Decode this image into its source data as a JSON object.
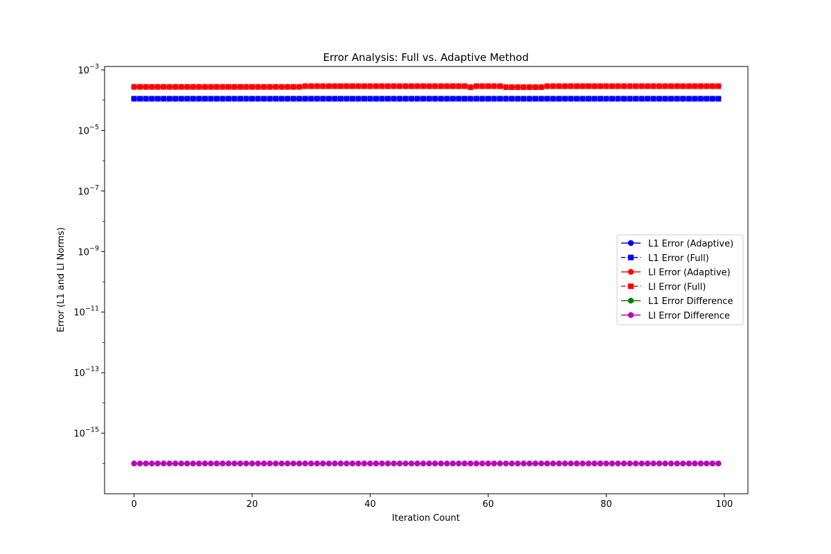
{
  "chart_data": {
    "type": "line",
    "title": "Error Analysis: Full vs. Adaptive Method",
    "xlabel": "Iteration Count",
    "ylabel": "Error (L1 and LI Norms)",
    "xlim": [
      -5,
      104
    ],
    "ylim": [
      1e-17,
      0.0013
    ],
    "yscale": "log",
    "grid": false,
    "legend_position": "center-right",
    "x_ticks": [
      {
        "value": 0,
        "label": "0"
      },
      {
        "value": 20,
        "label": "20"
      },
      {
        "value": 40,
        "label": "40"
      },
      {
        "value": 60,
        "label": "60"
      },
      {
        "value": 80,
        "label": "80"
      },
      {
        "value": 100,
        "label": "100"
      }
    ],
    "y_ticks": [
      {
        "exp": -3,
        "base": "10",
        "power": "−3"
      },
      {
        "exp": -5,
        "base": "10",
        "power": "−5"
      },
      {
        "exp": -7,
        "base": "10",
        "power": "−7"
      },
      {
        "exp": -9,
        "base": "10",
        "power": "−9"
      },
      {
        "exp": -11,
        "base": "10",
        "power": "−11"
      },
      {
        "exp": -13,
        "base": "10",
        "power": "−13"
      },
      {
        "exp": -15,
        "base": "10",
        "power": "−15"
      }
    ],
    "x": {
      "start": 0,
      "end": 99,
      "step": 1
    },
    "series": [
      {
        "name": "L1 Error (Adaptive)",
        "color": "#0000ff",
        "marker": "circle",
        "linestyle": "solid",
        "segments": [
          {
            "from": 0,
            "to": 99,
            "value": 0.000112
          }
        ]
      },
      {
        "name": "L1 Error (Full)",
        "color": "#0000ff",
        "marker": "square",
        "linestyle": "dashed",
        "segments": [
          {
            "from": 0,
            "to": 99,
            "value": 0.000112
          }
        ]
      },
      {
        "name": "LI Error (Adaptive)",
        "color": "#ff0000",
        "marker": "circle",
        "linestyle": "solid",
        "segments": [
          {
            "from": 0,
            "to": 28,
            "value": 0.000275
          },
          {
            "from": 29,
            "to": 56,
            "value": 0.00029
          },
          {
            "from": 57,
            "to": 57,
            "value": 0.00027
          },
          {
            "from": 58,
            "to": 62,
            "value": 0.00029
          },
          {
            "from": 63,
            "to": 69,
            "value": 0.00027
          },
          {
            "from": 70,
            "to": 99,
            "value": 0.00029
          }
        ]
      },
      {
        "name": "LI Error (Full)",
        "color": "#ff0000",
        "marker": "square",
        "linestyle": "dashed",
        "segments": [
          {
            "from": 0,
            "to": 28,
            "value": 0.000275
          },
          {
            "from": 29,
            "to": 56,
            "value": 0.00029
          },
          {
            "from": 57,
            "to": 57,
            "value": 0.00027
          },
          {
            "from": 58,
            "to": 62,
            "value": 0.00029
          },
          {
            "from": 63,
            "to": 69,
            "value": 0.00027
          },
          {
            "from": 70,
            "to": 99,
            "value": 0.00029
          }
        ]
      },
      {
        "name": "L1 Error Difference",
        "color": "#008000",
        "marker": "circle",
        "linestyle": "solid",
        "segments": [
          {
            "from": 0,
            "to": 99,
            "value": 1e-16
          }
        ]
      },
      {
        "name": "LI Error Difference",
        "color": "#bf00bf",
        "marker": "circle",
        "linestyle": "solid",
        "segments": [
          {
            "from": 0,
            "to": 99,
            "value": 1e-16
          }
        ]
      }
    ]
  }
}
